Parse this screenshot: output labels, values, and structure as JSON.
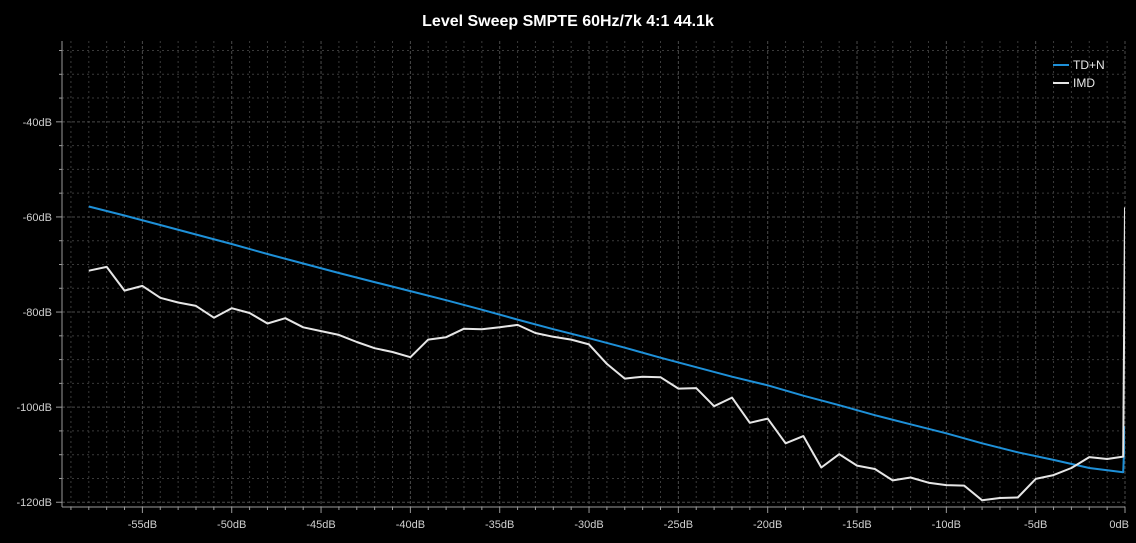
{
  "colors": {
    "background": "#000000",
    "grid": "#3a3a3a",
    "axis": "#9a9a9a",
    "tdn": "#1e90d8",
    "imd": "#e6e6e6"
  },
  "chart_data": {
    "type": "line",
    "title": "Level Sweep SMPTE 60Hz/7k 4:1 44.1k",
    "xlabel": "",
    "ylabel": "",
    "xlim": [
      -59.5,
      0
    ],
    "ylim": [
      -121,
      -23
    ],
    "x_ticks": [
      -55,
      -50,
      -45,
      -40,
      -35,
      -30,
      -25,
      -20,
      -15,
      -10,
      -5,
      0
    ],
    "x_tick_labels": [
      "-55dB",
      "-50dB",
      "-45dB",
      "-40dB",
      "-35dB",
      "-30dB",
      "-25dB",
      "-20dB",
      "-15dB",
      "-10dB",
      "-5dB",
      "0dB"
    ],
    "y_ticks": [
      -40,
      -60,
      -80,
      -100,
      -120
    ],
    "y_tick_labels": [
      "-40dB",
      "-60dB",
      "-80dB",
      "-100dB",
      "-120dB"
    ],
    "grid": true,
    "legend_position": "top-right",
    "series": [
      {
        "name": "TD+N",
        "color": "#1e90d8",
        "x": [
          -58,
          -56,
          -54,
          -52,
          -50,
          -48,
          -46,
          -44,
          -42,
          -40,
          -38,
          -36,
          -34,
          -32,
          -30,
          -28,
          -26,
          -24,
          -22,
          -20,
          -18,
          -16,
          -14,
          -12,
          -10,
          -8,
          -6,
          -4,
          -2,
          -0.1,
          0
        ],
        "y": [
          -57.8,
          -59.7,
          -61.7,
          -63.7,
          -65.7,
          -67.8,
          -69.8,
          -71.8,
          -73.7,
          -75.6,
          -77.5,
          -79.5,
          -81.6,
          -83.6,
          -85.5,
          -87.5,
          -89.6,
          -91.6,
          -93.6,
          -95.4,
          -97.6,
          -99.6,
          -101.7,
          -103.6,
          -105.5,
          -107.6,
          -109.5,
          -111.1,
          -112.8,
          -113.7,
          -104.0
        ]
      },
      {
        "name": "IMD",
        "color": "#e6e6e6",
        "x": [
          -58,
          -57,
          -56,
          -55,
          -54,
          -53,
          -52,
          -51,
          -50,
          -49,
          -48,
          -47,
          -46,
          -45,
          -44,
          -43,
          -42,
          -41,
          -40,
          -39,
          -38,
          -37,
          -36,
          -35,
          -34,
          -33,
          -32,
          -31,
          -30,
          -29,
          -28,
          -27,
          -26,
          -25,
          -24,
          -23,
          -22,
          -21,
          -20,
          -19,
          -18,
          -17,
          -16,
          -15,
          -14,
          -13,
          -12,
          -11,
          -10,
          -9,
          -8,
          -7,
          -6,
          -5,
          -4,
          -3,
          -2,
          -1,
          -0.1,
          0
        ],
        "y": [
          -71.3,
          -70.5,
          -75.5,
          -74.5,
          -77.0,
          -78.0,
          -78.7,
          -81.2,
          -79.2,
          -80.2,
          -82.4,
          -81.3,
          -83.2,
          -84.0,
          -84.8,
          -86.3,
          -87.6,
          -88.4,
          -89.5,
          -85.8,
          -85.3,
          -83.5,
          -83.6,
          -83.2,
          -82.7,
          -84.4,
          -85.2,
          -85.8,
          -86.8,
          -90.9,
          -94.0,
          -93.6,
          -93.7,
          -96.1,
          -96.0,
          -99.8,
          -98.0,
          -103.3,
          -102.4,
          -107.6,
          -106.1,
          -112.7,
          -109.9,
          -112.3,
          -113.0,
          -115.4,
          -114.8,
          -115.9,
          -116.4,
          -116.5,
          -119.6,
          -119.1,
          -119.0,
          -115.1,
          -114.3,
          -112.8,
          -110.5,
          -110.9,
          -110.4,
          -58.0
        ]
      }
    ]
  }
}
